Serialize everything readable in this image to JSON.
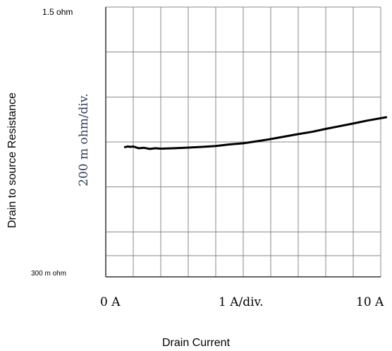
{
  "chart_data": {
    "type": "line",
    "title": "",
    "xlabel": "Drain Current",
    "ylabel": "Drain to source Resistance",
    "x_scale_note": "1 A/div.",
    "y_scale_note": "200 m ohm/div.",
    "x_tick_labels": [
      "0 A",
      "1 A/div.",
      "10 A"
    ],
    "y_top_label": "1.5 ohm",
    "y_bottom_label": "300 m ohm",
    "xlim": [
      0,
      10
    ],
    "ylim": [
      0.3,
      1.5
    ],
    "grid": true,
    "x_divisions": 10,
    "y_divisions": 6,
    "line_color": "#000000",
    "scale_note_color": "#2f3f5c",
    "series": [
      {
        "x": [
          0.7,
          0.8,
          0.9,
          1.0,
          1.2,
          1.4,
          1.6,
          1.8,
          2.0,
          2.5,
          3.0,
          3.5,
          4.0,
          4.5,
          5.0,
          5.5,
          6.0,
          6.5,
          7.0,
          7.5,
          8.0,
          8.5,
          9.0,
          9.5,
          10.2
        ],
        "values": [
          0.877,
          0.88,
          0.878,
          0.88,
          0.872,
          0.874,
          0.869,
          0.872,
          0.87,
          0.872,
          0.875,
          0.878,
          0.882,
          0.889,
          0.894,
          0.903,
          0.913,
          0.924,
          0.935,
          0.945,
          0.958,
          0.97,
          0.982,
          0.995,
          1.01
        ]
      }
    ]
  }
}
